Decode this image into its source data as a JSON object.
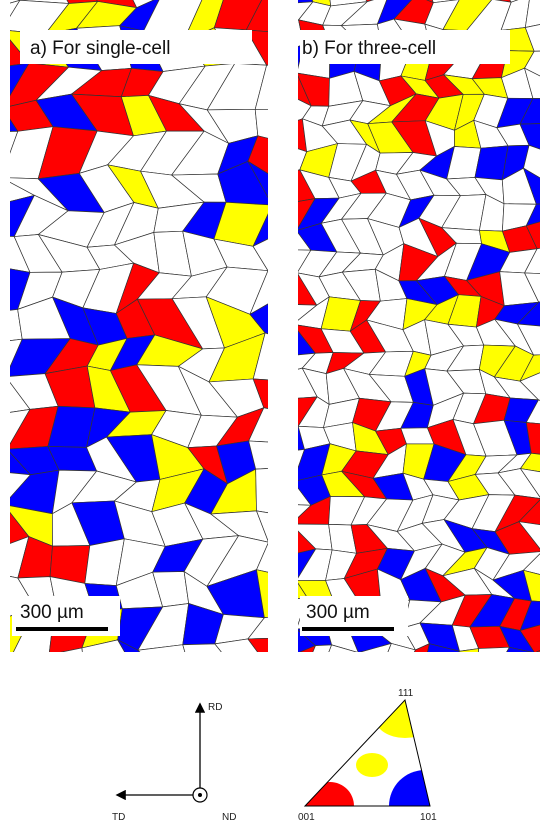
{
  "panels": [
    {
      "label": "a) For single-cell",
      "scale_bar": "300 µm"
    },
    {
      "label": "b) For three-cell",
      "scale_bar": "300 µm"
    }
  ],
  "axes": {
    "rd": "RD",
    "td": "TD",
    "nd": "ND"
  },
  "ipf": {
    "top": "111",
    "left": "001",
    "right": "101"
  }
}
